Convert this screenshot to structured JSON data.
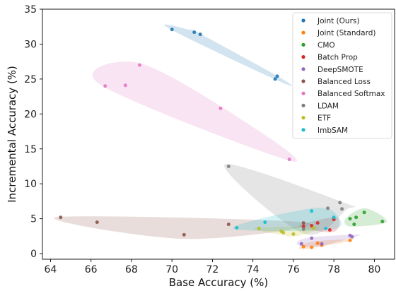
{
  "chart_data": {
    "type": "scatter",
    "title": "",
    "xlabel": "Base Accuracy (%)",
    "ylabel": "Incremental Accuracy (%)",
    "xlim": [
      63.6,
      81
    ],
    "ylim": [
      -0.8,
      35
    ],
    "xticks": [
      64,
      66,
      68,
      70,
      72,
      74,
      76,
      78,
      80
    ],
    "yticks": [
      0,
      5,
      10,
      15,
      20,
      25,
      30,
      35
    ],
    "grid": false,
    "legend_position": "top-right",
    "series": [
      {
        "name": "Joint (Ours)",
        "color": "#1f77b4",
        "points": [
          [
            70.0,
            32.1
          ],
          [
            71.1,
            31.7
          ],
          [
            71.4,
            31.4
          ],
          [
            75.1,
            25.0
          ],
          [
            75.2,
            25.4
          ]
        ]
      },
      {
        "name": "Joint (Standard)",
        "color": "#ff7f0e",
        "points": [
          [
            76.5,
            1.0
          ],
          [
            76.9,
            0.9
          ],
          [
            77.2,
            1.5
          ],
          [
            77.4,
            1.2
          ],
          [
            78.8,
            1.9
          ]
        ]
      },
      {
        "name": "CMO",
        "color": "#2ca02c",
        "points": [
          [
            78.8,
            5.0
          ],
          [
            79.0,
            4.2
          ],
          [
            79.1,
            5.2
          ],
          [
            79.5,
            5.9
          ],
          [
            80.4,
            4.6
          ]
        ]
      },
      {
        "name": "Batch Prop",
        "color": "#d62728",
        "points": [
          [
            76.5,
            3.9
          ],
          [
            76.9,
            4.0
          ],
          [
            77.2,
            4.4
          ],
          [
            77.8,
            3.4
          ],
          [
            78.0,
            4.9
          ]
        ]
      },
      {
        "name": "DeepSMOTE",
        "color": "#9467bd",
        "points": [
          [
            76.4,
            1.4
          ],
          [
            76.9,
            2.2
          ],
          [
            77.4,
            1.4
          ],
          [
            78.8,
            2.6
          ],
          [
            78.9,
            2.4
          ]
        ]
      },
      {
        "name": "Balanced Loss",
        "color": "#8c564b",
        "points": [
          [
            64.5,
            5.2
          ],
          [
            66.3,
            4.5
          ],
          [
            70.6,
            2.7
          ],
          [
            72.8,
            4.2
          ],
          [
            76.5,
            4.4
          ]
        ]
      },
      {
        "name": "Balanced Softmax",
        "color": "#e377c2",
        "points": [
          [
            66.7,
            24.0
          ],
          [
            67.7,
            24.1
          ],
          [
            68.4,
            27.0
          ],
          [
            72.4,
            20.8
          ],
          [
            75.8,
            13.5
          ]
        ]
      },
      {
        "name": "LDAM",
        "color": "#7f7f7f",
        "points": [
          [
            72.8,
            12.5
          ],
          [
            76.5,
            3.5
          ],
          [
            77.7,
            6.5
          ],
          [
            78.3,
            7.3
          ],
          [
            78.4,
            6.4
          ]
        ]
      },
      {
        "name": "ETF",
        "color": "#bcbd22",
        "points": [
          [
            74.3,
            3.6
          ],
          [
            75.4,
            3.2
          ],
          [
            75.5,
            3.0
          ],
          [
            76.0,
            2.8
          ],
          [
            77.0,
            3.7
          ]
        ]
      },
      {
        "name": "ImbSAM",
        "color": "#17becf",
        "points": [
          [
            73.2,
            3.7
          ],
          [
            74.6,
            4.5
          ],
          [
            76.9,
            6.1
          ],
          [
            77.6,
            3.6
          ],
          [
            78.0,
            5.2
          ]
        ]
      }
    ]
  }
}
